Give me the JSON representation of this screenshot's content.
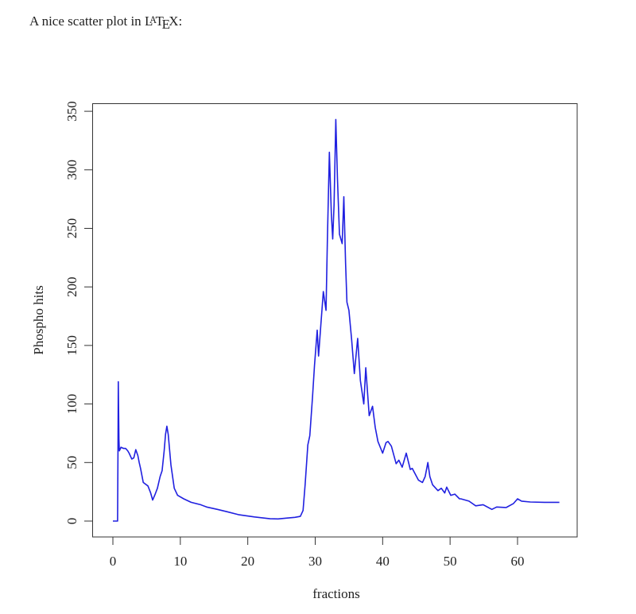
{
  "document": {
    "caption_prefix": "A nice scatter plot in ",
    "caption_latex": "LaTeX",
    "caption_suffix": ":"
  },
  "chart_data": {
    "type": "line",
    "title": "",
    "xlabel": "fractions",
    "ylabel": "Phospho hits",
    "xlim": [
      -3.0,
      69.0
    ],
    "ylim": [
      -14.0,
      357.0
    ],
    "xticks": [
      0,
      10,
      20,
      30,
      40,
      50,
      60
    ],
    "yticks": [
      0,
      50,
      100,
      150,
      200,
      250,
      300,
      350
    ],
    "grid": false,
    "legend": null,
    "line_color": "#2020e0",
    "series": [
      {
        "name": "Phospho hits",
        "x": [
          0.0,
          0.7,
          0.75,
          0.8,
          0.9,
          0.95,
          1.2,
          1.6,
          1.9,
          2.2,
          2.4,
          2.8,
          3.1,
          3.4,
          3.7,
          3.9,
          4.1,
          4.5,
          5.2,
          5.6,
          5.9,
          6.2,
          6.6,
          7.0,
          7.3,
          7.6,
          7.8,
          8.0,
          8.2,
          8.6,
          9.1,
          9.6,
          10.5,
          11.6,
          13.0,
          13.9,
          15.5,
          16.9,
          18.6,
          21.0,
          23.3,
          24.5,
          25.7,
          27.0,
          27.8,
          28.2,
          28.5,
          28.9,
          29.2,
          29.6,
          29.9,
          30.3,
          30.5,
          30.8,
          31.2,
          31.6,
          31.8,
          32.1,
          32.4,
          32.6,
          32.8,
          33.05,
          33.3,
          33.6,
          34.0,
          34.25,
          34.5,
          34.7,
          35.0,
          35.4,
          35.8,
          36.3,
          36.7,
          37.2,
          37.5,
          38.0,
          38.5,
          38.9,
          39.3,
          40.0,
          40.5,
          40.8,
          41.3,
          42.0,
          42.4,
          42.9,
          43.5,
          44.1,
          44.4,
          45.3,
          45.9,
          46.3,
          46.7,
          47.0,
          47.4,
          48.2,
          48.7,
          49.2,
          49.5,
          50.1,
          50.7,
          51.4,
          51.6,
          52.8,
          53.8,
          54.9,
          56.2,
          56.9,
          58.3,
          59.4,
          60.0,
          60.6,
          61.9,
          64.0,
          66.2
        ],
        "y": [
          0,
          0,
          60,
          119,
          70,
          60,
          63,
          62,
          62,
          60,
          58,
          53,
          54,
          61,
          56,
          50,
          45,
          33,
          30,
          24,
          18,
          22,
          28,
          38,
          43,
          60,
          74,
          81,
          74,
          48,
          28,
          22,
          19,
          16,
          14,
          12,
          10,
          8,
          5.5,
          3.5,
          2,
          1.8,
          2.5,
          3.2,
          4,
          9,
          31,
          65,
          73,
          106,
          133,
          163,
          141,
          165,
          196,
          180,
          240,
          315,
          262,
          241,
          270,
          343,
          292,
          245,
          237,
          277,
          220,
          187,
          180,
          155,
          126,
          156,
          120,
          100,
          131,
          90,
          98,
          80,
          68,
          58,
          67,
          68,
          64,
          49,
          52,
          46,
          58,
          44,
          45,
          35,
          33,
          38,
          50,
          38,
          31,
          26,
          28,
          24,
          29,
          22,
          23,
          19,
          19,
          17,
          13,
          14,
          10,
          12,
          11.5,
          15,
          19,
          17,
          16.3,
          16,
          16
        ]
      }
    ]
  }
}
